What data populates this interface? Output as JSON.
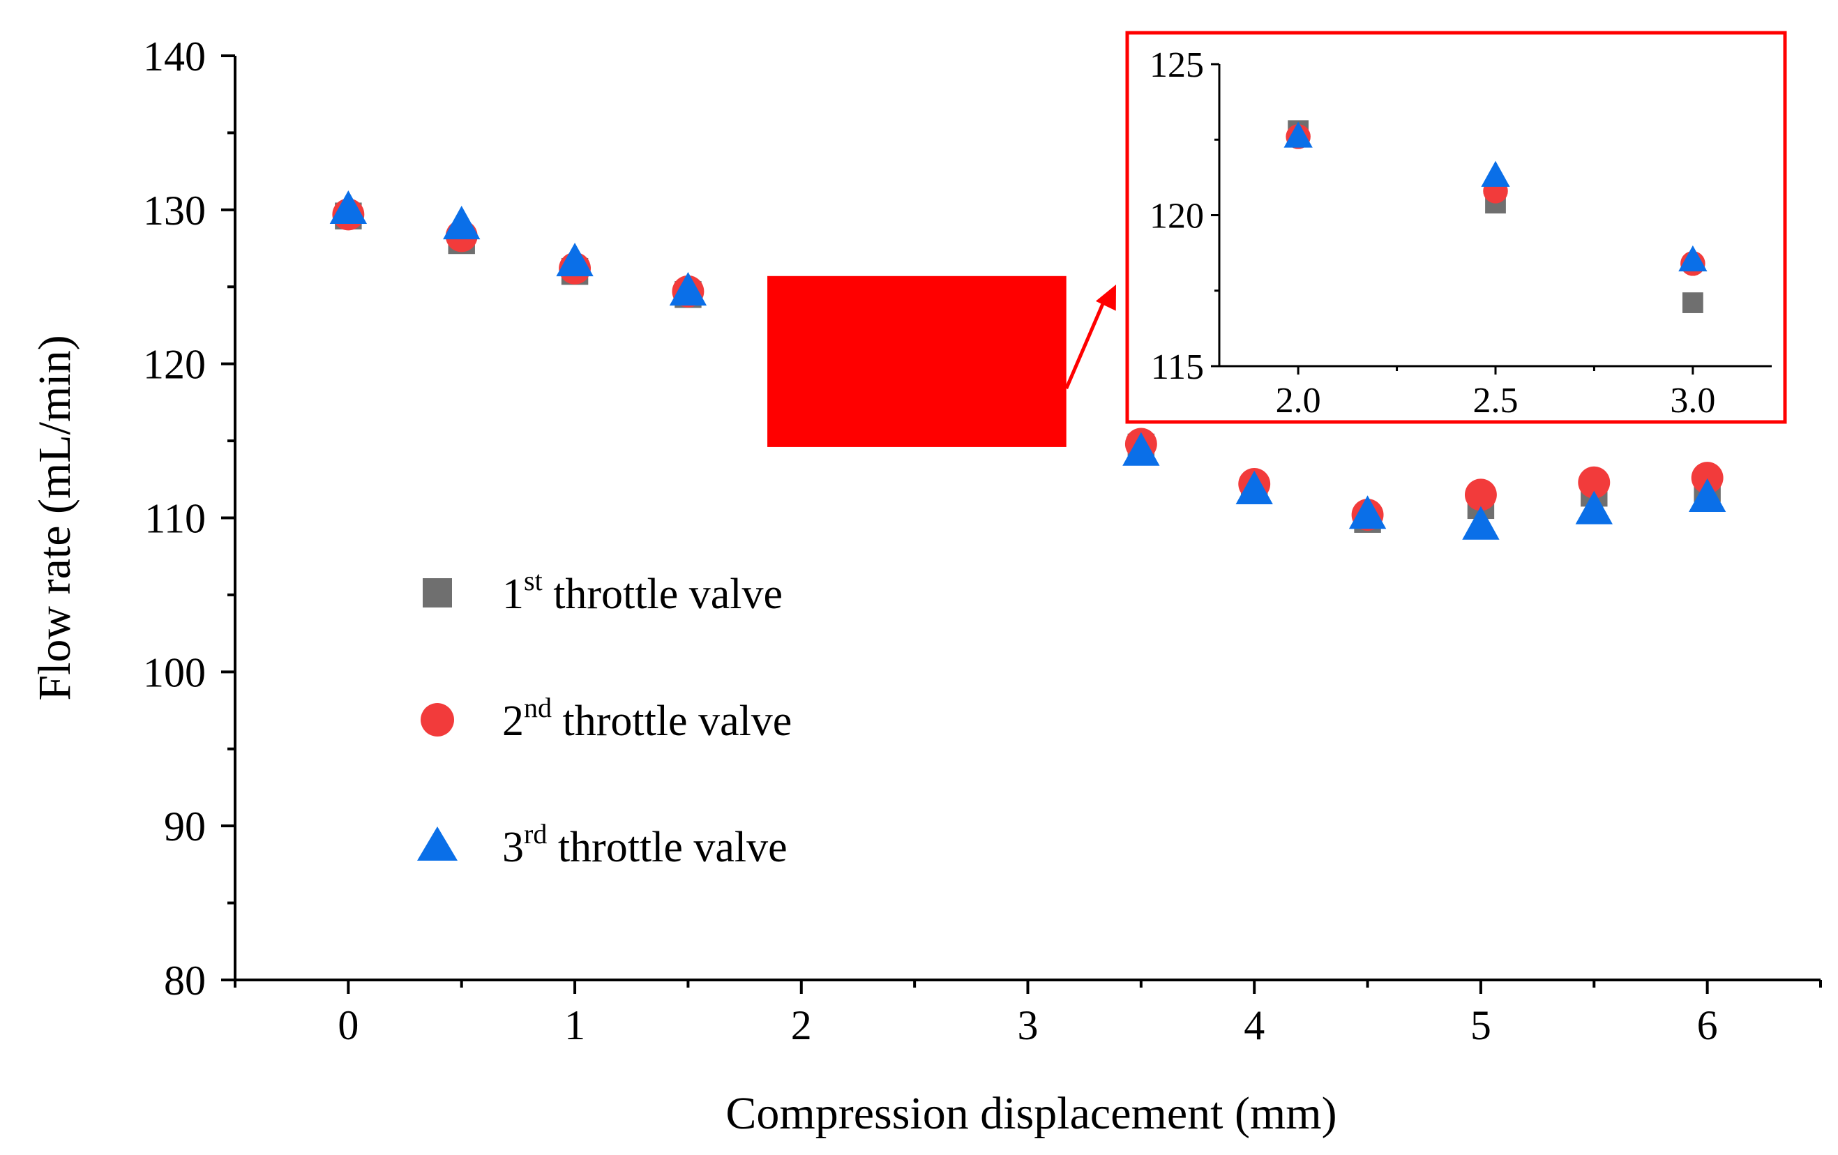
{
  "colors": {
    "series1": "#6f6f6f",
    "series2": "#f23b3b",
    "series3": "#0a6fe8",
    "highlight": "#ff0000",
    "axis": "#000000"
  },
  "chart_data": [
    {
      "type": "scatter",
      "title": "",
      "xlabel": "Compression displacement (mm)",
      "ylabel": "Flow rate (mL/min)",
      "xlim": [
        -0.5,
        6.5
      ],
      "ylim": [
        80,
        140
      ],
      "x_ticks": [
        0,
        1,
        2,
        3,
        4,
        5,
        6
      ],
      "x_tick_labels": [
        "0",
        "1",
        "2",
        "3",
        "4",
        "5",
        "6"
      ],
      "x_minor_ticks": [
        -0.5,
        0.5,
        1.5,
        2.5,
        3.5,
        4.5,
        5.5,
        6.5
      ],
      "y_ticks": [
        80,
        90,
        100,
        110,
        120,
        130,
        140
      ],
      "y_tick_labels": [
        "80",
        "90",
        "100",
        "110",
        "120",
        "130",
        "140"
      ],
      "y_minor_ticks": [
        85,
        95,
        105,
        115,
        125,
        135
      ],
      "legend_position": "left-middle",
      "highlight_box": {
        "x_range": [
          1.85,
          3.17
        ],
        "y_range": [
          114.6,
          125.7
        ],
        "label": ""
      },
      "series": [
        {
          "name": "1st throttle valve",
          "name_base": "1",
          "name_sup": "st",
          "name_rest": " throttle valve",
          "marker": "square",
          "x": [
            0,
            0.5,
            1,
            1.5,
            3.5,
            4,
            4.5,
            5,
            5.5,
            6
          ],
          "y": [
            129.6,
            128.0,
            126.0,
            124.5,
            114.6,
            111.9,
            109.9,
            110.8,
            111.6,
            111.9
          ]
        },
        {
          "name": "2nd throttle valve",
          "name_base": "2",
          "name_sup": "nd",
          "name_rest": " throttle valve",
          "marker": "circle",
          "x": [
            0,
            0.5,
            1,
            1.5,
            3.5,
            4,
            4.5,
            5,
            5.5,
            6
          ],
          "y": [
            129.7,
            128.3,
            126.2,
            124.7,
            114.8,
            112.2,
            110.2,
            111.5,
            112.3,
            112.6
          ]
        },
        {
          "name": "3rd throttle valve",
          "name_base": "3",
          "name_sup": "rd",
          "name_rest": " throttle valve",
          "marker": "triangle",
          "x": [
            0,
            0.5,
            1,
            1.5,
            3.5,
            4,
            4.5,
            5,
            5.5,
            6
          ],
          "y": [
            130.0,
            129.0,
            126.6,
            124.7,
            114.3,
            111.8,
            110.2,
            109.5,
            110.5,
            111.3
          ]
        }
      ]
    },
    {
      "type": "scatter",
      "title": "inset",
      "xlabel": "",
      "ylabel": "",
      "xlim": [
        1.8,
        3.2
      ],
      "ylim": [
        115,
        125
      ],
      "x_ticks": [
        2.0,
        2.5,
        3.0
      ],
      "x_tick_labels": [
        "2.0",
        "2.5",
        "3.0"
      ],
      "x_minor_ticks": [
        2.25,
        2.75
      ],
      "y_ticks": [
        115,
        120,
        125
      ],
      "y_tick_labels": [
        "115",
        "120",
        "125"
      ],
      "y_minor_ticks": [
        117.5,
        122.5
      ],
      "series": [
        {
          "name": "1st throttle valve",
          "marker": "square",
          "x": [
            2.0,
            2.5,
            3.0
          ],
          "y": [
            122.8,
            120.4,
            117.1
          ]
        },
        {
          "name": "2nd throttle valve",
          "marker": "circle",
          "x": [
            2.0,
            2.5,
            3.0
          ],
          "y": [
            122.6,
            120.8,
            118.4
          ]
        },
        {
          "name": "3rd throttle valve",
          "marker": "triangle",
          "x": [
            2.0,
            2.5,
            3.0
          ],
          "y": [
            122.6,
            121.3,
            118.5
          ]
        }
      ]
    }
  ]
}
